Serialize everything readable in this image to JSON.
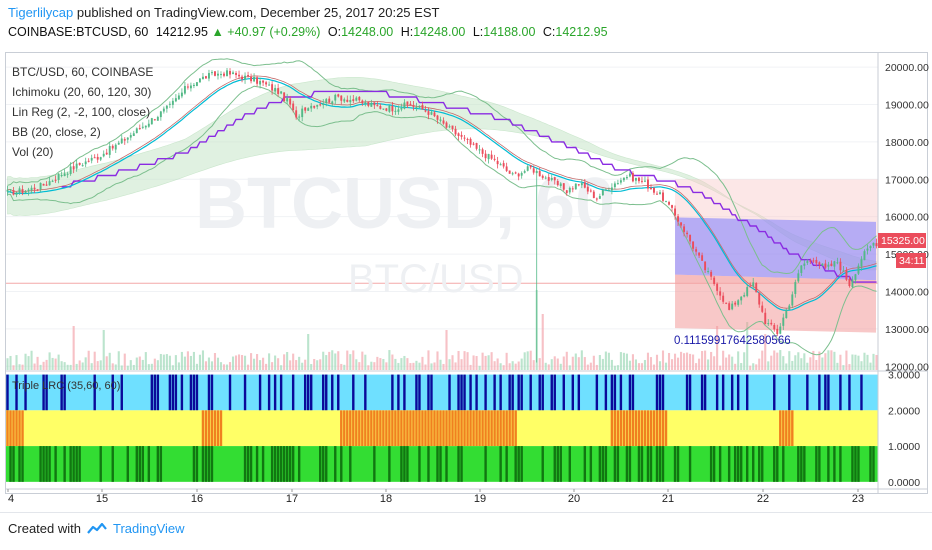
{
  "header": {
    "user": "Tigerlilycap",
    "published": "published on TradingView.com, December 25, 2017 20:25 EST",
    "symbol": "COINBASE:BTCUSD, 60",
    "price": "14212.95",
    "change": "▲ +40.97 (+0.29%)",
    "o_label": "O:",
    "o_value": "14248.00",
    "h_label": "H:",
    "h_value": "14248.00",
    "l_label": "L:",
    "l_value": "14188.00",
    "c_label": "C:",
    "c_value": "14212.95"
  },
  "legend": {
    "symbol": "BTC/USD, 60, COINBASE",
    "ichimoku": "Ichimoku (20, 60, 120, 30)",
    "linreg": "Lin Reg (2, -2, 100, close)",
    "bb": "BB (20, close, 2)",
    "vol": "Vol (20)"
  },
  "watermark": {
    "line1": "BTCUSD, 60",
    "line2": "BTC/USD"
  },
  "linreg_label": "0.11159917642580566",
  "price_badge": {
    "price": "15325.00",
    "countdown": "34:11"
  },
  "indicator_title": "Triple LRC (35,60, 60)",
  "footer": {
    "created": "Created with",
    "brand": "TradingView"
  },
  "colors": {
    "up": "#53b987",
    "down": "#eb4d5c",
    "ichimoku_cloud": "#c8e6c9",
    "ichimoku_cloud_red": "#f8c9c9",
    "bb": "#7cbf8e",
    "purple": "#8a2be2",
    "cyan": "#00bcd4",
    "linreg_blue": "#7b7bff",
    "linreg_red": "#f29b9b",
    "ind_cyan": "#6fe0ff",
    "ind_navy": "#0a0a9a",
    "ind_yellow": "#ffff66",
    "ind_orange": "#f08020",
    "ind_green": "#33dd33",
    "ind_darkgreen": "#117711"
  },
  "chart_data": {
    "type": "candlestick",
    "price_axis": {
      "labels": [
        "20000.00",
        "19000.00",
        "18000.00",
        "17000.00",
        "16000.00",
        "15000.00",
        "14000.00",
        "13000.00",
        "12000.00"
      ],
      "range": [
        11900,
        20350
      ]
    },
    "indicator_axis": {
      "labels": [
        "3.0000",
        "2.0000",
        "1.0000",
        "0.0000"
      ],
      "range": [
        -0.2,
        3.1
      ]
    },
    "time_axis": {
      "labels": [
        "4",
        "15",
        "16",
        "17",
        "18",
        "19",
        "20",
        "21",
        "22",
        "23"
      ]
    },
    "days": [
      "4",
      "15",
      "16",
      "17",
      "18",
      "19",
      "20",
      "21",
      "22",
      "23"
    ],
    "close_anchors": [
      [
        0,
        16650
      ],
      [
        6,
        16700
      ],
      [
        12,
        16850
      ],
      [
        18,
        17150
      ],
      [
        24,
        17400
      ],
      [
        30,
        17600
      ],
      [
        36,
        17900
      ],
      [
        42,
        18250
      ],
      [
        48,
        18600
      ],
      [
        54,
        18950
      ],
      [
        60,
        19500
      ],
      [
        66,
        19750
      ],
      [
        72,
        19850
      ],
      [
        78,
        19750
      ],
      [
        84,
        19600
      ],
      [
        90,
        19350
      ],
      [
        94,
        19000
      ],
      [
        96,
        18600
      ],
      [
        98,
        18900
      ],
      [
        104,
        19050
      ],
      [
        110,
        19200
      ],
      [
        116,
        19100
      ],
      [
        122,
        18950
      ],
      [
        128,
        18900
      ],
      [
        134,
        19000
      ],
      [
        140,
        18800
      ],
      [
        146,
        18400
      ],
      [
        152,
        18050
      ],
      [
        156,
        17800
      ],
      [
        162,
        17500
      ],
      [
        168,
        17100
      ],
      [
        174,
        17300
      ],
      [
        180,
        17000
      ],
      [
        186,
        16700
      ],
      [
        190,
        16900
      ],
      [
        196,
        16500
      ],
      [
        200,
        16800
      ],
      [
        206,
        17100
      ],
      [
        212,
        16900
      ],
      [
        218,
        16500
      ],
      [
        224,
        15800
      ],
      [
        228,
        15200
      ],
      [
        232,
        14600
      ],
      [
        236,
        14100
      ],
      [
        240,
        13500
      ],
      [
        244,
        13900
      ],
      [
        248,
        14200
      ],
      [
        252,
        13200
      ],
      [
        256,
        12900
      ],
      [
        260,
        13700
      ],
      [
        264,
        14700
      ],
      [
        268,
        14900
      ],
      [
        272,
        14600
      ],
      [
        276,
        14800
      ],
      [
        280,
        14200
      ],
      [
        284,
        14900
      ],
      [
        288,
        15300
      ]
    ],
    "volume_profile": "Vol(20) bars: mostly low with spikes near days 15-16, 18, 20 (tallest) and 22",
    "ichimoku_cloud": "green band from ~15.8k-17.5k rising to ~17.8k-19.3k, turning red near day 21-23",
    "linreg_channel": {
      "upper": [
        15980,
        15860
      ],
      "mid": [
        14450,
        14300
      ],
      "lower": [
        13020,
        12900
      ],
      "coefficient": "0.11159917642580566"
    }
  }
}
